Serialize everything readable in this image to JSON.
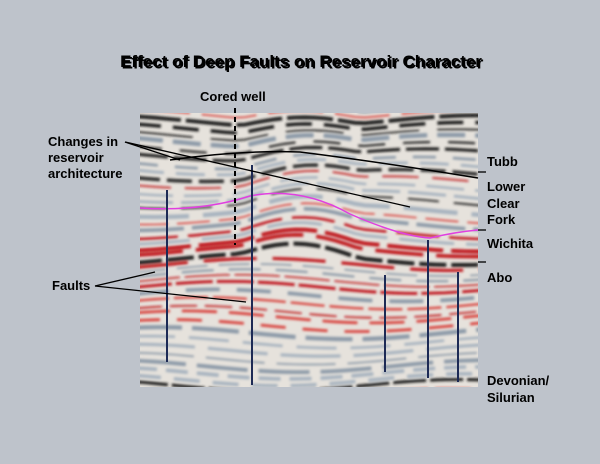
{
  "title": "Effect of Deep Faults on Reservoir Character",
  "annotations": {
    "cored_well": "Cored well",
    "changes": [
      "Changes in",
      "reservoir",
      "architecture"
    ],
    "faults": "Faults"
  },
  "horizons": {
    "tubb": "Tubb",
    "lower_clear_fork": [
      "Lower",
      "Clear",
      "Fork"
    ],
    "wichita": "Wichita",
    "abo": "Abo",
    "devonian": [
      "Devonian/",
      "Silurian"
    ]
  }
}
